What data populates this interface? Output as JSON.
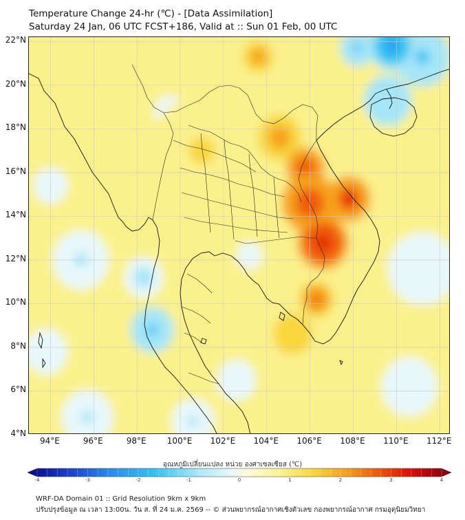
{
  "header": {
    "title": "Temperature Change 24-hr (℃) - [Data Assimilation]",
    "subtitle": "Saturday 24 Jan, 06 UTC FCST+186, Valid at :: Sun 01 Feb, 00 UTC"
  },
  "map": {
    "lat_labels": [
      "22°N",
      "20°N",
      "18°N",
      "16°N",
      "14°N",
      "12°N",
      "10°N",
      "8°N",
      "6°N",
      "4°N"
    ],
    "lon_labels": [
      "94°E",
      "96°E",
      "98°E",
      "100°E",
      "102°E",
      "104°E",
      "106°E",
      "108°E",
      "110°E",
      "112°E"
    ],
    "lat_values": [
      22,
      20,
      18,
      16,
      14,
      12,
      10,
      8,
      6,
      4
    ],
    "lon_values": [
      94,
      96,
      98,
      100,
      102,
      104,
      106,
      108,
      110,
      112
    ],
    "extent": {
      "lon_min": 93.0,
      "lon_max": 112.5,
      "lat_min": 4.0,
      "lat_max": 22.2
    },
    "blobs": [
      {
        "lon": 106.6,
        "lat": 12.8,
        "value": 3.0,
        "radius_deg": 1.2
      },
      {
        "lon": 106.0,
        "lat": 14.6,
        "value": 2.6,
        "radius_deg": 1.3
      },
      {
        "lon": 107.8,
        "lat": 14.8,
        "value": 2.7,
        "radius_deg": 1.0
      },
      {
        "lon": 105.8,
        "lat": 16.2,
        "value": 2.5,
        "radius_deg": 0.9
      },
      {
        "lon": 104.6,
        "lat": 17.6,
        "value": 1.8,
        "radius_deg": 1.0
      },
      {
        "lon": 106.3,
        "lat": 10.2,
        "value": 2.3,
        "radius_deg": 0.8
      },
      {
        "lon": 103.6,
        "lat": 21.3,
        "value": 1.9,
        "radius_deg": 0.7
      },
      {
        "lon": 101.0,
        "lat": 17.0,
        "value": 0.9,
        "radius_deg": 2.4
      },
      {
        "lon": 105.2,
        "lat": 8.6,
        "value": 1.2,
        "radius_deg": 1.2
      },
      {
        "lon": 97.0,
        "lat": 20.2,
        "value": 0.8,
        "radius_deg": 1.5
      },
      {
        "lon": 109.8,
        "lat": 21.8,
        "value": -2.4,
        "radius_deg": 1.1
      },
      {
        "lon": 108.2,
        "lat": 21.7,
        "value": -1.6,
        "radius_deg": 0.8
      },
      {
        "lon": 111.2,
        "lat": 21.3,
        "value": -1.6,
        "radius_deg": 1.3
      },
      {
        "lon": 109.6,
        "lat": 19.3,
        "value": -1.5,
        "radius_deg": 1.1
      },
      {
        "lon": 98.7,
        "lat": 8.8,
        "value": -1.6,
        "radius_deg": 1.0
      },
      {
        "lon": 98.3,
        "lat": 11.2,
        "value": -1.1,
        "radius_deg": 0.9
      },
      {
        "lon": 95.4,
        "lat": 12.0,
        "value": -0.8,
        "radius_deg": 1.3
      },
      {
        "lon": 93.8,
        "lat": 7.8,
        "value": -0.7,
        "radius_deg": 1.0
      },
      {
        "lon": 95.7,
        "lat": 4.8,
        "value": -0.9,
        "radius_deg": 1.2
      },
      {
        "lon": 100.6,
        "lat": 4.6,
        "value": -0.8,
        "radius_deg": 1.0
      },
      {
        "lon": 102.6,
        "lat": 6.5,
        "value": -0.5,
        "radius_deg": 0.9
      },
      {
        "lon": 103.2,
        "lat": 12.2,
        "value": -0.6,
        "radius_deg": 0.6
      },
      {
        "lon": 111.2,
        "lat": 11.6,
        "value": -0.6,
        "radius_deg": 1.6
      },
      {
        "lon": 110.6,
        "lat": 6.2,
        "value": -0.7,
        "radius_deg": 1.3
      },
      {
        "lon": 99.5,
        "lat": 18.8,
        "value": -0.5,
        "radius_deg": 0.7
      },
      {
        "lon": 94.0,
        "lat": 15.4,
        "value": -0.6,
        "radius_deg": 0.8
      }
    ],
    "coast_color": "#111111",
    "grid_color": "#c8c8c8"
  },
  "colorbar": {
    "label": "อุณหภูมิเปลี่ยนแปลง หน่วย องศาเซลเซียส (℃)",
    "min": -4,
    "max": 4,
    "ticks": [
      "-4",
      "-3",
      "-2",
      "-1",
      "0",
      "1",
      "2",
      "3",
      "4"
    ],
    "tick_values": [
      -4,
      -3,
      -2,
      -1,
      0,
      1,
      2,
      3,
      4
    ],
    "stops": [
      {
        "value": -4.0,
        "color": "#050880"
      },
      {
        "value": -3.2,
        "color": "#1a40d0"
      },
      {
        "value": -2.4,
        "color": "#2a8ff0"
      },
      {
        "value": -1.6,
        "color": "#35c2f2"
      },
      {
        "value": -0.8,
        "color": "#a6e6f8"
      },
      {
        "value": -0.15,
        "color": "#e9f8fb"
      },
      {
        "value": 0.15,
        "color": "#fffbd6"
      },
      {
        "value": 0.8,
        "color": "#fbf18c"
      },
      {
        "value": 1.4,
        "color": "#f9d63c"
      },
      {
        "value": 2.0,
        "color": "#f7a21c"
      },
      {
        "value": 2.6,
        "color": "#f05a0c"
      },
      {
        "value": 3.2,
        "color": "#e01005"
      },
      {
        "value": 4.0,
        "color": "#7a0010"
      }
    ]
  },
  "footer": {
    "line1": "WRF-DA Domain 01 :: Grid Resolution 9km x 9km",
    "line2": "ปรับปรุงข้อมูล ณ เวลา 13:00น. วัน ส. ที่ 24 ม.ค. 2569 -- © ส่วนพยากรณ์อากาศเชิงตัวเลข กองพยากรณ์อากาศ กรมอุตุนิยมวิทยา"
  }
}
